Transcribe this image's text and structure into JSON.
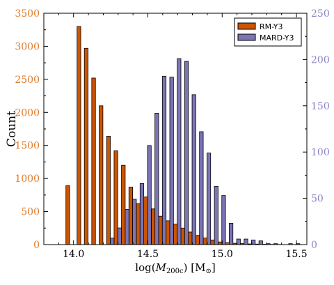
{
  "chart_data": {
    "type": "bar",
    "xlabel": "log(M200c) [M⊙]",
    "ylabel": "Count",
    "xlim": [
      13.8,
      15.57
    ],
    "x_ticks": [
      14.0,
      14.5,
      15.0,
      15.5
    ],
    "x_tick_labels": [
      "14.0",
      "14.5",
      "15.0",
      "15.5"
    ],
    "left_axis": {
      "ylim": [
        0,
        3500
      ],
      "ticks": [
        0,
        500,
        1000,
        1500,
        2000,
        2500,
        3000,
        3500
      ],
      "tick_labels": [
        "0",
        "500",
        "1000",
        "1500",
        "2000",
        "2500",
        "3000",
        "3500"
      ],
      "color": "#e07b2a"
    },
    "right_axis": {
      "ylim": [
        0,
        250
      ],
      "ticks": [
        0,
        50,
        100,
        150,
        200,
        250
      ],
      "tick_labels": [
        "0",
        "50",
        "100",
        "150",
        "200",
        "250"
      ],
      "color": "#8a84c4"
    },
    "legend": {
      "placement": "top-right"
    },
    "bin_width": 0.05,
    "series": [
      {
        "name": "RM-Y3",
        "axis": "left",
        "color": "#cc5500",
        "x": [
          13.961,
          14.036,
          14.085,
          14.135,
          14.185,
          14.235,
          14.285,
          14.335,
          14.385,
          14.435,
          14.485,
          14.536,
          14.585,
          14.635,
          14.685,
          14.735,
          14.785,
          14.835,
          14.885,
          14.935,
          14.986,
          15.035,
          15.085,
          15.135,
          15.185,
          15.235,
          15.285,
          15.335,
          15.385
        ],
        "values": [
          890,
          3300,
          2970,
          2520,
          2100,
          1640,
          1420,
          1200,
          870,
          620,
          720,
          540,
          430,
          360,
          310,
          250,
          190,
          140,
          100,
          70,
          40,
          30,
          20,
          15,
          10,
          8,
          5,
          3,
          2
        ]
      },
      {
        "name": "MARD-Y3",
        "axis": "right",
        "color": "#7b74b5",
        "x": [
          14.26,
          14.31,
          14.36,
          14.41,
          14.46,
          14.51,
          14.56,
          14.61,
          14.66,
          14.71,
          14.76,
          14.81,
          14.86,
          14.91,
          14.96,
          15.01,
          15.06,
          15.11,
          15.16,
          15.21,
          15.26,
          15.31,
          15.36,
          15.41,
          15.46,
          15.51
        ],
        "values": [
          7,
          18,
          38,
          49,
          66,
          107,
          142,
          182,
          181,
          201,
          198,
          162,
          122,
          99,
          63,
          53,
          23,
          6,
          6,
          5,
          4,
          1,
          1,
          0,
          1,
          1
        ]
      }
    ]
  }
}
